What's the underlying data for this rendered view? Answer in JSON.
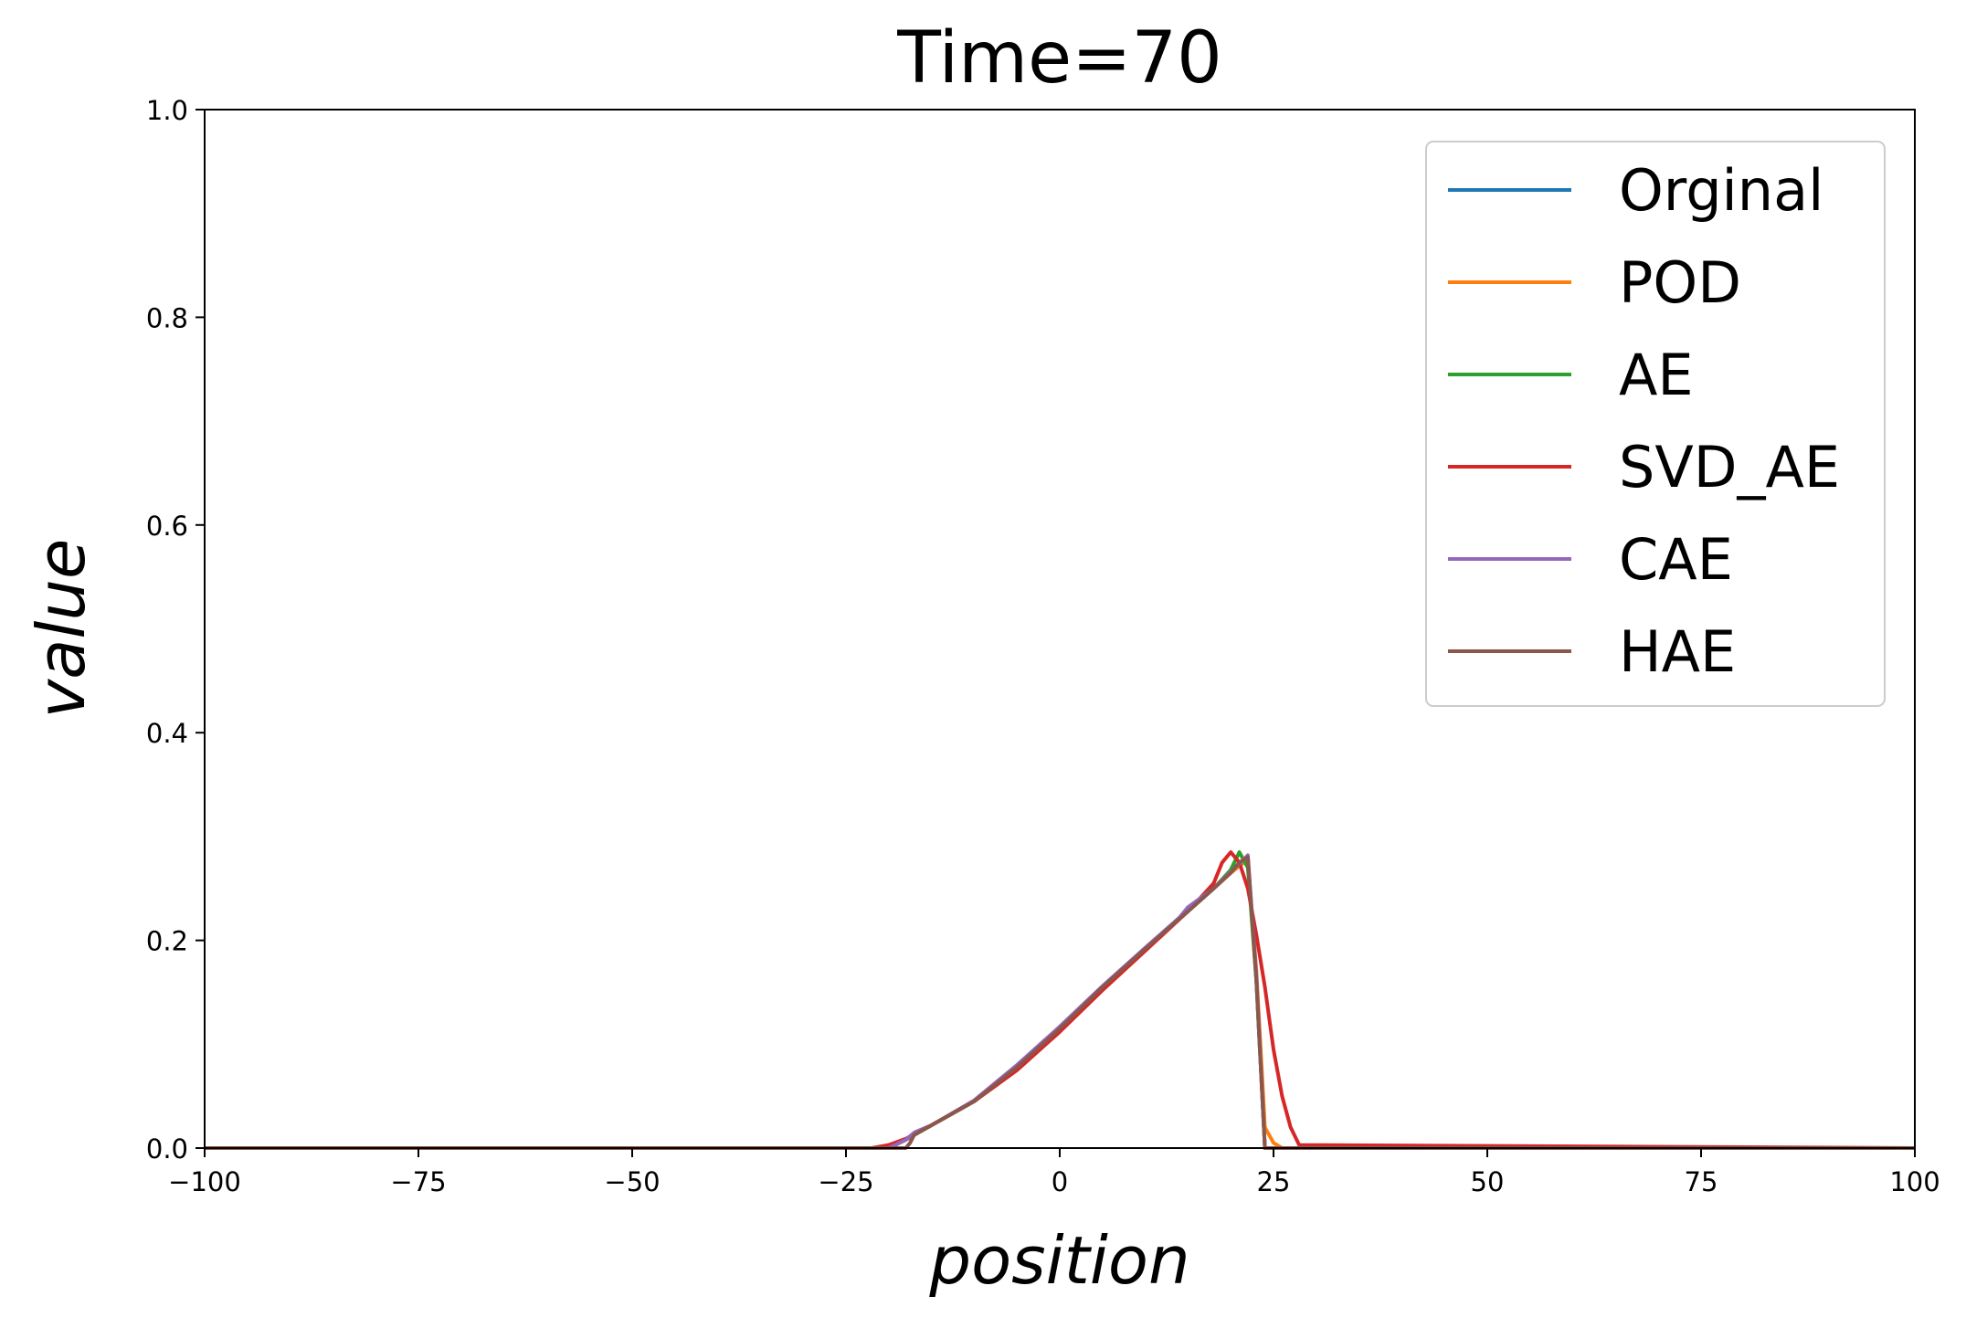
{
  "chart_data": {
    "type": "line",
    "title": "Time=70",
    "xlabel": "position",
    "ylabel": "value",
    "xlim": [
      -100,
      100
    ],
    "ylim": [
      0.0,
      1.0
    ],
    "xticks": [
      -100,
      -75,
      -50,
      -25,
      0,
      25,
      50,
      75,
      100
    ],
    "xtick_labels": [
      "−100",
      "−75",
      "−50",
      "−25",
      "0",
      "25",
      "50",
      "75",
      "100"
    ],
    "yticks": [
      0.0,
      0.2,
      0.4,
      0.6,
      0.8,
      1.0
    ],
    "ytick_labels": [
      "0.0",
      "0.2",
      "0.4",
      "0.6",
      "0.8",
      "1.0"
    ],
    "grid": false,
    "legend_position": "top-right",
    "series": [
      {
        "name": "Orginal",
        "color": "#1f77b4",
        "x": [
          -100,
          -20,
          -18,
          -15,
          -10,
          -5,
          0,
          5,
          10,
          15,
          18,
          20,
          22,
          23,
          24,
          25,
          100
        ],
        "y": [
          0.0,
          0.0,
          0.008,
          0.022,
          0.045,
          0.078,
          0.115,
          0.155,
          0.192,
          0.228,
          0.25,
          0.265,
          0.28,
          0.16,
          0.0,
          0.0,
          0.0
        ]
      },
      {
        "name": "POD",
        "color": "#ff7f0e",
        "x": [
          -100,
          -20,
          -18,
          -15,
          -10,
          -5,
          0,
          5,
          10,
          15,
          18,
          20,
          22,
          23,
          24,
          25,
          26,
          100
        ],
        "y": [
          0.0,
          0.0,
          0.008,
          0.022,
          0.045,
          0.078,
          0.115,
          0.155,
          0.192,
          0.228,
          0.25,
          0.265,
          0.278,
          0.17,
          0.02,
          0.005,
          0.0,
          0.0
        ]
      },
      {
        "name": "AE",
        "color": "#2ca02c",
        "x": [
          -100,
          -20,
          -18,
          -15,
          -10,
          -5,
          0,
          5,
          10,
          15,
          18,
          20,
          21,
          22,
          23,
          24,
          25,
          100
        ],
        "y": [
          0.0,
          0.0,
          0.008,
          0.022,
          0.045,
          0.078,
          0.115,
          0.155,
          0.192,
          0.228,
          0.25,
          0.268,
          0.285,
          0.27,
          0.16,
          0.0,
          0.0,
          0.0
        ]
      },
      {
        "name": "SVD_AE",
        "color": "#d62728",
        "x": [
          -100,
          -22,
          -20,
          -18,
          -15,
          -10,
          -5,
          0,
          5,
          10,
          15,
          18,
          19,
          20,
          21,
          22,
          23,
          24,
          25,
          26,
          27,
          28,
          100
        ],
        "y": [
          0.0,
          0.0,
          0.003,
          0.009,
          0.022,
          0.045,
          0.075,
          0.112,
          0.152,
          0.19,
          0.228,
          0.255,
          0.275,
          0.285,
          0.275,
          0.25,
          0.205,
          0.155,
          0.095,
          0.05,
          0.02,
          0.003,
          0.0
        ]
      },
      {
        "name": "CAE",
        "color": "#9467bd",
        "x": [
          -100,
          -20,
          -18,
          -17,
          -15,
          -10,
          -5,
          0,
          5,
          10,
          14,
          15,
          18,
          20,
          22,
          23,
          24,
          25,
          100
        ],
        "y": [
          0.0,
          0.0,
          0.008,
          0.015,
          0.022,
          0.046,
          0.08,
          0.117,
          0.156,
          0.193,
          0.222,
          0.232,
          0.25,
          0.266,
          0.282,
          0.165,
          0.0,
          0.0,
          0.0
        ]
      },
      {
        "name": "HAE",
        "color": "#8c564b",
        "x": [
          -100,
          -18,
          -17.5,
          -17,
          -15,
          -10,
          -5,
          0,
          5,
          10,
          15,
          18,
          20,
          21,
          22,
          23,
          24,
          25,
          100
        ],
        "y": [
          0.0,
          0.0,
          0.005,
          0.013,
          0.022,
          0.045,
          0.078,
          0.115,
          0.155,
          0.192,
          0.228,
          0.25,
          0.265,
          0.275,
          0.28,
          0.16,
          0.0,
          0.0,
          0.0
        ]
      }
    ]
  }
}
